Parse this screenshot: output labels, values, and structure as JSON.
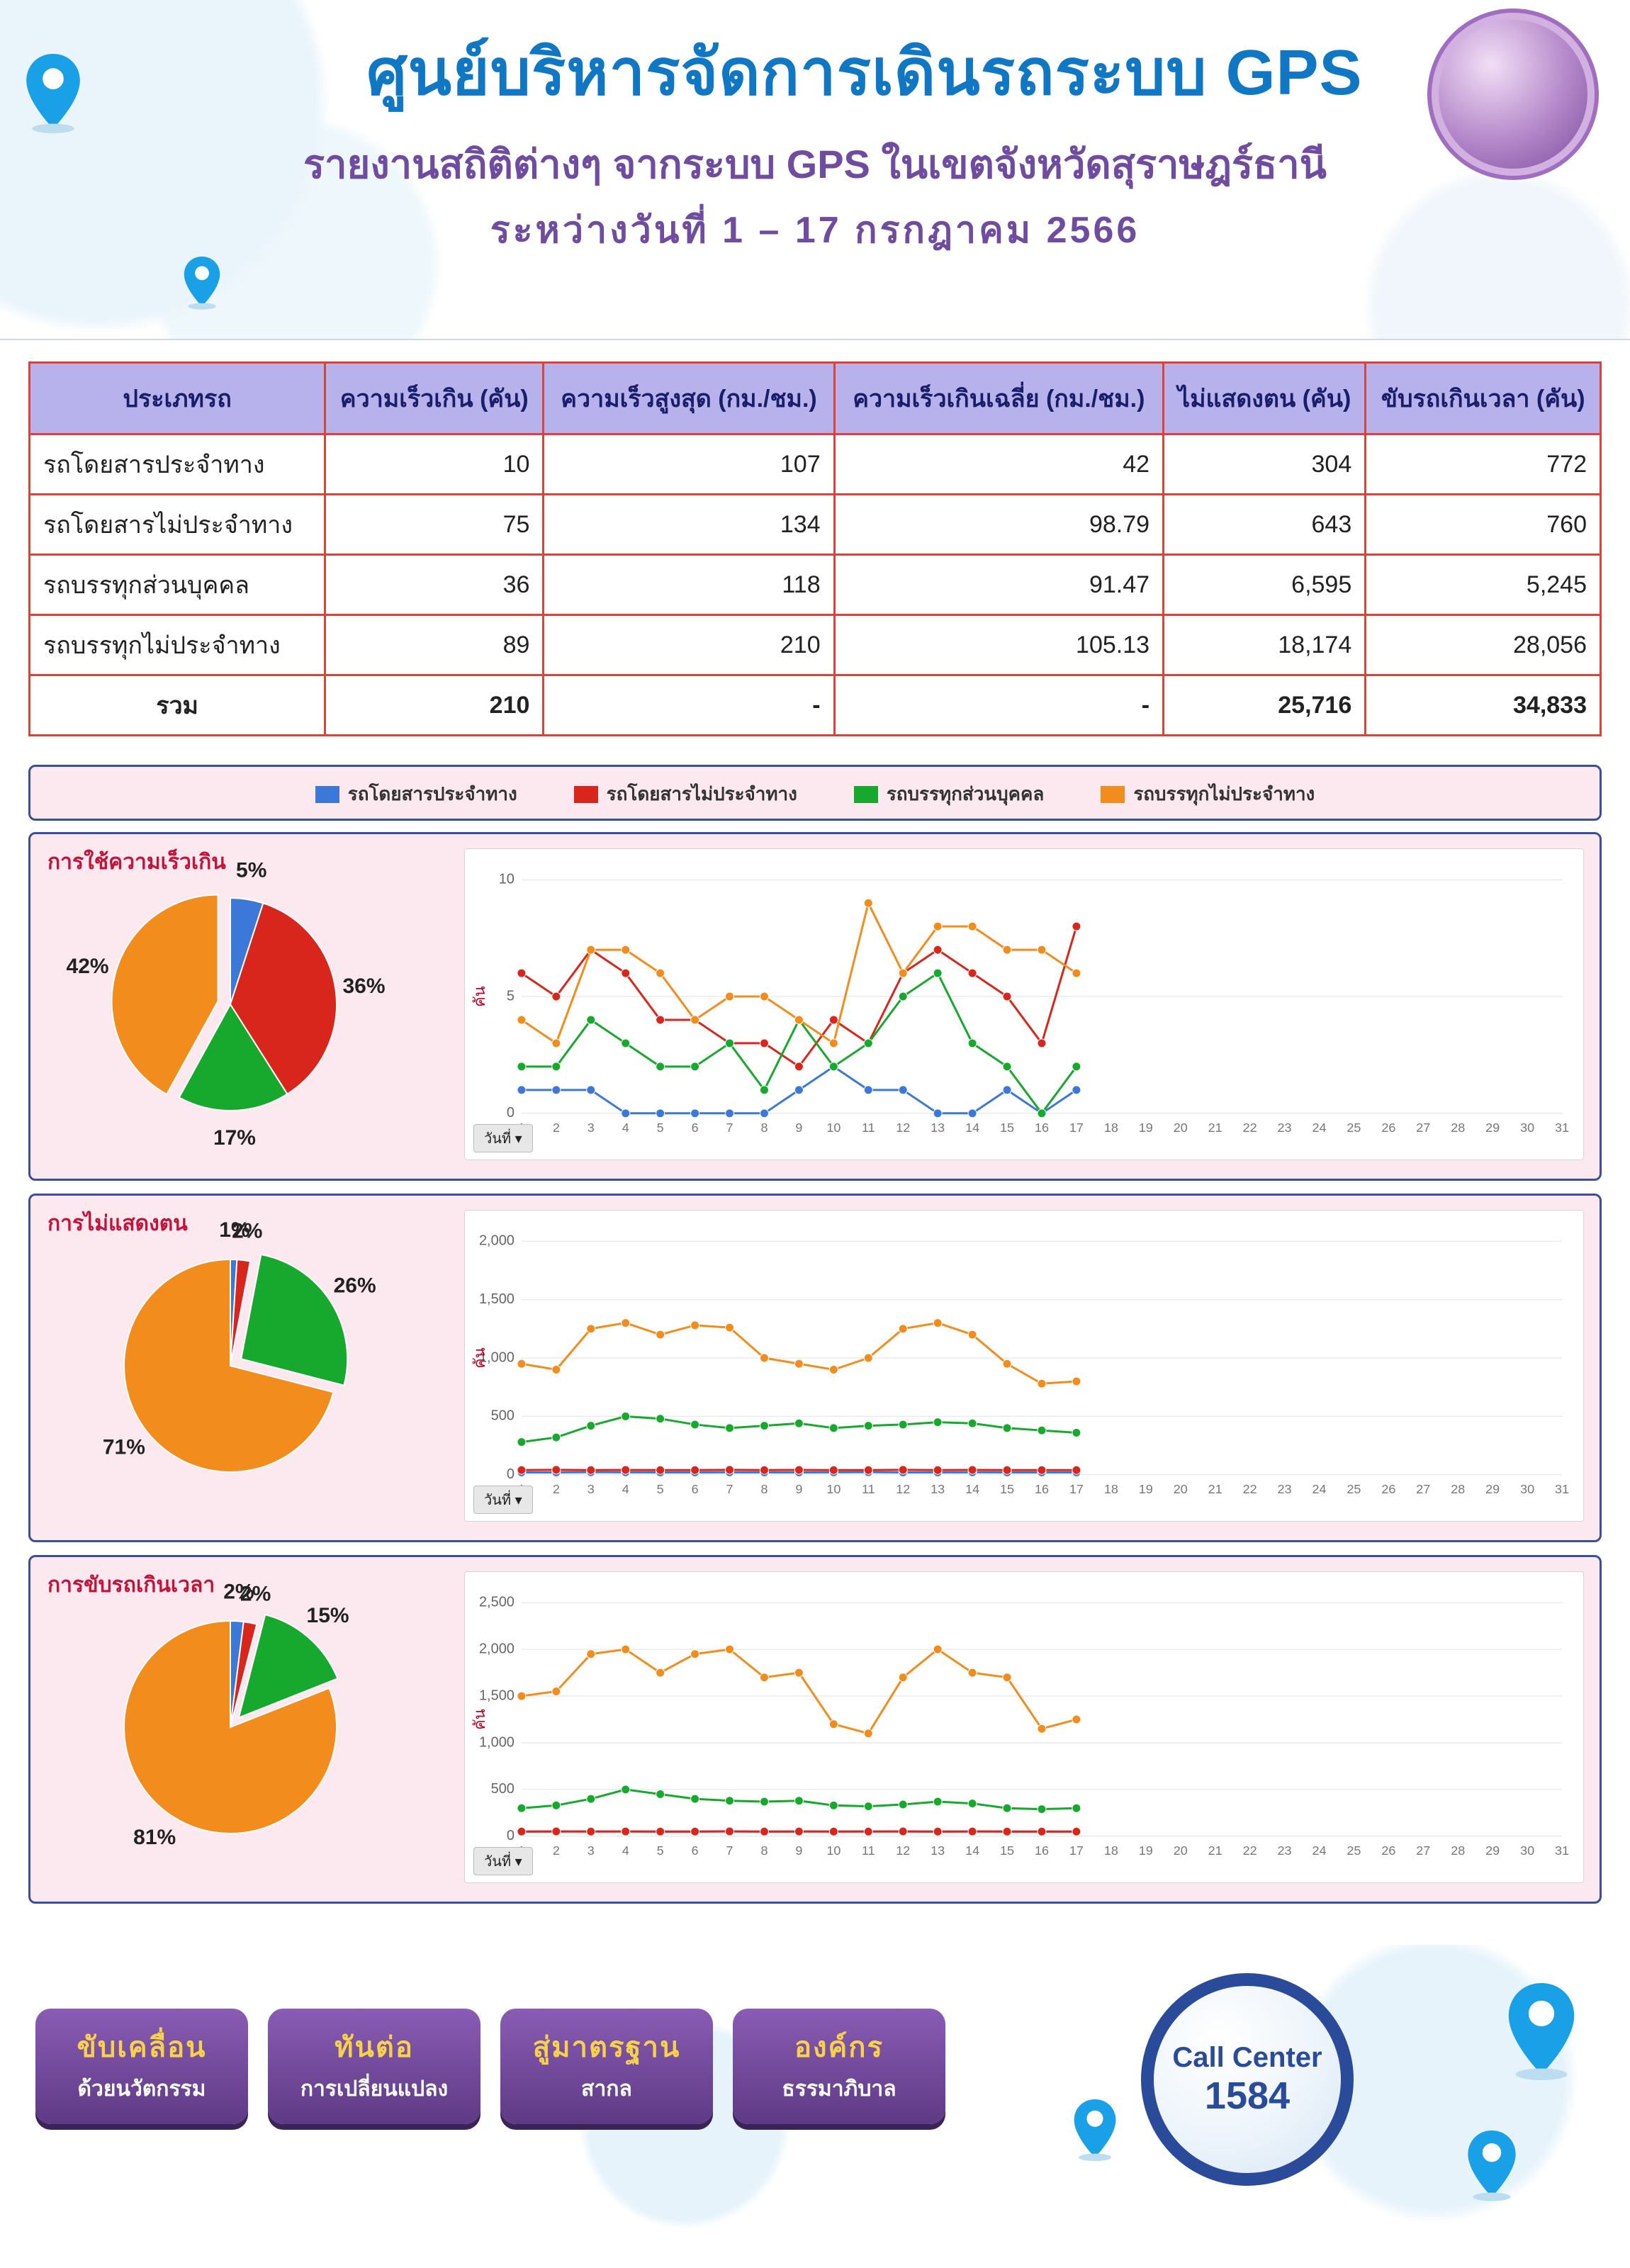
{
  "colors": {
    "series": {
      "s1": "#3b78d8",
      "s2": "#d8261c",
      "s3": "#17a92e",
      "s4": "#f28c1c"
    },
    "header_title": "#1077c5",
    "header_sub": "#6f4ca0",
    "panel_border": "#3a4f9b",
    "panel_bg": "#fce9f0",
    "table_header_bg": "#b7b2ec",
    "table_border": "#d9443a",
    "panel_title_color": "#c4123a"
  },
  "header": {
    "title": "ศูนย์บริหารจัดการเดินรถระบบ  GPS",
    "subtitle1": "รายงานสถิติต่างๆ จากระบบ GPS ในเขตจังหวัดสุราษฎร์ธานี",
    "subtitle2": "ระหว่างวันที่   1 – 17 กรกฎาคม  2566"
  },
  "legend": {
    "items": [
      {
        "key": "s1",
        "label": "รถโดยสารประจำทาง"
      },
      {
        "key": "s2",
        "label": "รถโดยสารไม่ประจำทาง"
      },
      {
        "key": "s3",
        "label": "รถบรรทุกส่วนบุคคล"
      },
      {
        "key": "s4",
        "label": "รถบรรทุกไม่ประจำทาง"
      }
    ]
  },
  "table": {
    "columns": [
      "ประเภทรถ",
      "ความเร็วเกิน (คัน)",
      "ความเร็วสูงสุด (กม./ชม.)",
      "ความเร็วเกินเฉลี่ย (กม./ชม.)",
      "ไม่แสดงตน (คัน)",
      "ขับรถเกินเวลา (คัน)"
    ],
    "rows": [
      [
        "รถโดยสารประจำทาง",
        "10",
        "107",
        "42",
        "304",
        "772"
      ],
      [
        "รถโดยสารไม่ประจำทาง",
        "75",
        "134",
        "98.79",
        "643",
        "760"
      ],
      [
        "รถบรรทุกส่วนบุคคล",
        "36",
        "118",
        "91.47",
        "6,595",
        "5,245"
      ],
      [
        "รถบรรทุกไม่ประจำทาง",
        "89",
        "210",
        "105.13",
        "18,174",
        "28,056"
      ]
    ],
    "total_label": "รวม",
    "total": [
      "210",
      "-",
      "-",
      "25,716",
      "34,833"
    ]
  },
  "panels": [
    {
      "id": "speed",
      "title": "การใช้ความเร็วเกิน",
      "pie": {
        "slices": [
          {
            "key": "s1",
            "pct": 5,
            "label": "5%"
          },
          {
            "key": "s2",
            "pct": 36,
            "label": "36%"
          },
          {
            "key": "s3",
            "pct": 17,
            "label": "17%"
          },
          {
            "key": "s4",
            "pct": 42,
            "label": "42%"
          }
        ],
        "explode": "s4",
        "label_fontsize": 30
      },
      "line": {
        "y_max": 10,
        "y_step": 5,
        "y_label": "คัน",
        "x_max": 31,
        "series": {
          "s1": [
            1,
            1,
            1,
            0,
            0,
            0,
            0,
            0,
            1,
            2,
            1,
            1,
            0,
            0,
            1,
            0,
            1
          ],
          "s2": [
            6,
            5,
            7,
            6,
            4,
            4,
            3,
            3,
            2,
            4,
            3,
            6,
            7,
            6,
            5,
            3,
            8
          ],
          "s3": [
            2,
            2,
            4,
            3,
            2,
            2,
            3,
            1,
            4,
            2,
            3,
            5,
            6,
            3,
            2,
            0,
            2
          ],
          "s4": [
            4,
            3,
            7,
            7,
            6,
            4,
            5,
            5,
            4,
            3,
            9,
            6,
            8,
            8,
            7,
            7,
            6
          ]
        }
      }
    },
    {
      "id": "noshow",
      "title": "การไม่แสดงตน",
      "pie": {
        "slices": [
          {
            "key": "s1",
            "pct": 1,
            "label": "1%"
          },
          {
            "key": "s2",
            "pct": 2,
            "label": "2%"
          },
          {
            "key": "s3",
            "pct": 26,
            "label": "26%"
          },
          {
            "key": "s4",
            "pct": 71,
            "label": "71%"
          }
        ],
        "explode": "s3",
        "label_fontsize": 30
      },
      "line": {
        "y_max": 2000,
        "y_step": 500,
        "y_label": "คัน",
        "x_max": 31,
        "series": {
          "s1": [
            20,
            20,
            22,
            21,
            20,
            20,
            21,
            20,
            20,
            21,
            22,
            20,
            20,
            21,
            20,
            20,
            20
          ],
          "s2": [
            40,
            42,
            40,
            41,
            40,
            40,
            42,
            40,
            41,
            40,
            40,
            42,
            40,
            41,
            40,
            40,
            40
          ],
          "s3": [
            280,
            320,
            420,
            500,
            480,
            430,
            400,
            420,
            440,
            400,
            420,
            430,
            450,
            440,
            400,
            380,
            360
          ],
          "s4": [
            950,
            900,
            1250,
            1300,
            1200,
            1280,
            1260,
            1000,
            950,
            900,
            1000,
            1250,
            1300,
            1200,
            950,
            780,
            800
          ]
        }
      }
    },
    {
      "id": "overtime",
      "title": "การขับรถเกินเวลา",
      "pie": {
        "slices": [
          {
            "key": "s1",
            "pct": 2,
            "label": "2%"
          },
          {
            "key": "s2",
            "pct": 2,
            "label": "2%"
          },
          {
            "key": "s3",
            "pct": 15,
            "label": "15%"
          },
          {
            "key": "s4",
            "pct": 81,
            "label": "81%"
          }
        ],
        "explode": "s3",
        "label_fontsize": 30
      },
      "line": {
        "y_max": 2500,
        "y_step": 500,
        "y_label": "คัน",
        "x_max": 31,
        "series": {
          "s1": [
            50,
            50,
            52,
            51,
            50,
            50,
            51,
            50,
            50,
            51,
            52,
            50,
            50,
            51,
            50,
            50,
            50
          ],
          "s2": [
            50,
            52,
            50,
            51,
            50,
            50,
            52,
            50,
            51,
            50,
            50,
            52,
            50,
            51,
            50,
            50,
            50
          ],
          "s3": [
            300,
            330,
            400,
            500,
            450,
            400,
            380,
            370,
            380,
            330,
            320,
            340,
            370,
            350,
            300,
            290,
            300
          ],
          "s4": [
            1500,
            1550,
            1950,
            2000,
            1750,
            1950,
            2000,
            1700,
            1750,
            1200,
            1100,
            1700,
            2000,
            1750,
            1700,
            1150,
            1250
          ]
        }
      }
    }
  ],
  "day_selector_label": "วันที่ ▾",
  "footer": {
    "pills": [
      {
        "l1": "ขับเคลื่อน",
        "l2": "ด้วยนวัตกรรม"
      },
      {
        "l1": "ทันต่อ",
        "l2": "การเปลี่ยนแปลง"
      },
      {
        "l1": "สู่มาตรฐาน",
        "l2": "สากล"
      },
      {
        "l1": "องค์กร",
        "l2": "ธรรมาภิบาล"
      }
    ],
    "callcenter": {
      "l1": "Call Center",
      "l2": "1584"
    }
  }
}
